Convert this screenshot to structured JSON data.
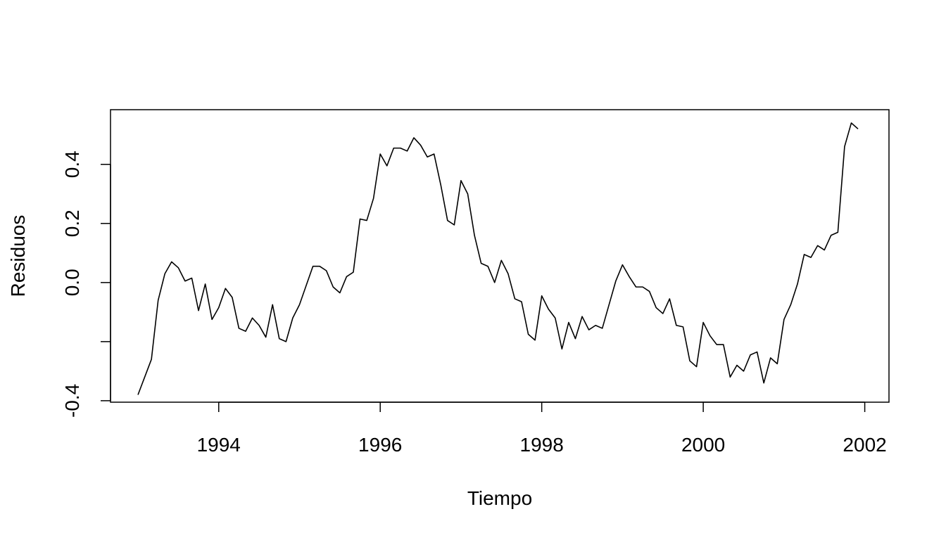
{
  "chart_data": {
    "type": "line",
    "title": "",
    "xlabel": "Tiempo",
    "ylabel": "Residuos",
    "xlim": [
      1992.66,
      2002.3
    ],
    "ylim": [
      -0.405,
      0.585
    ],
    "x_ticks": [
      {
        "value": 1994,
        "label": "1994"
      },
      {
        "value": 1996,
        "label": "1996"
      },
      {
        "value": 1998,
        "label": "1998"
      },
      {
        "value": 2000,
        "label": "2000"
      },
      {
        "value": 2002,
        "label": "2002"
      }
    ],
    "y_ticks": [
      {
        "value": -0.4,
        "label": "-0.4"
      },
      {
        "value": -0.2,
        "label": ""
      },
      {
        "value": 0.0,
        "label": "0.0"
      },
      {
        "value": 0.2,
        "label": "0.2"
      },
      {
        "value": 0.4,
        "label": "0.4"
      }
    ],
    "grid": false,
    "line_color": "#000000",
    "series": [
      {
        "x_start": 1993.0,
        "x_step": 0.0833333,
        "values": [
          -0.38,
          -0.32,
          -0.26,
          -0.06,
          0.03,
          0.07,
          0.05,
          0.005,
          0.015,
          -0.095,
          -0.005,
          -0.125,
          -0.085,
          -0.02,
          -0.05,
          -0.155,
          -0.165,
          -0.12,
          -0.145,
          -0.185,
          -0.075,
          -0.19,
          -0.2,
          -0.12,
          -0.075,
          -0.01,
          0.055,
          0.055,
          0.04,
          -0.015,
          -0.035,
          0.02,
          0.035,
          0.215,
          0.21,
          0.285,
          0.435,
          0.395,
          0.455,
          0.455,
          0.445,
          0.49,
          0.465,
          0.425,
          0.435,
          0.33,
          0.21,
          0.195,
          0.345,
          0.3,
          0.16,
          0.065,
          0.055,
          0.0,
          0.075,
          0.03,
          -0.055,
          -0.065,
          -0.175,
          -0.195,
          -0.045,
          -0.09,
          -0.12,
          -0.225,
          -0.135,
          -0.19,
          -0.115,
          -0.16,
          -0.145,
          -0.155,
          -0.075,
          0.005,
          0.06,
          0.02,
          -0.015,
          -0.015,
          -0.03,
          -0.085,
          -0.105,
          -0.055,
          -0.145,
          -0.15,
          -0.265,
          -0.285,
          -0.135,
          -0.18,
          -0.21,
          -0.21,
          -0.32,
          -0.28,
          -0.3,
          -0.245,
          -0.235,
          -0.34,
          -0.255,
          -0.275,
          -0.125,
          -0.075,
          -0.005,
          0.095,
          0.085,
          0.125,
          0.11,
          0.16,
          0.17,
          0.46,
          0.54,
          0.52
        ]
      }
    ]
  }
}
